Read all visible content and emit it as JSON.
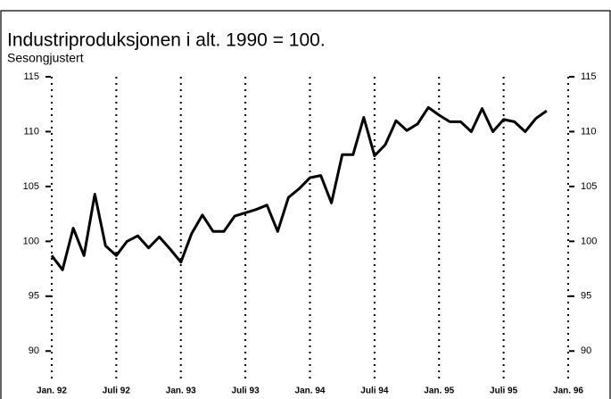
{
  "chart_data": {
    "type": "line",
    "title": "Industriproduksjonen i alt. 1990 = 100.",
    "subtitle": "Sesongjustert",
    "x": [
      "1992-01",
      "1992-02",
      "1992-03",
      "1992-04",
      "1992-05",
      "1992-06",
      "1992-07",
      "1992-08",
      "1992-09",
      "1992-10",
      "1992-11",
      "1992-12",
      "1993-01",
      "1993-02",
      "1993-03",
      "1993-04",
      "1993-05",
      "1993-06",
      "1993-07",
      "1993-08",
      "1993-09",
      "1993-10",
      "1993-11",
      "1993-12",
      "1994-01",
      "1994-02",
      "1994-03",
      "1994-04",
      "1994-05",
      "1994-06",
      "1994-07",
      "1994-08",
      "1994-09",
      "1994-10",
      "1994-11",
      "1994-12",
      "1995-01",
      "1995-02",
      "1995-03",
      "1995-04",
      "1995-05",
      "1995-06",
      "1995-07",
      "1995-08",
      "1995-09",
      "1995-10",
      "1995-11"
    ],
    "series": [
      {
        "name": "Industriproduksjonen i alt",
        "color": "#000000",
        "values": [
          98.7,
          97.4,
          101.2,
          98.7,
          104.3,
          99.6,
          98.7,
          100.0,
          100.5,
          99.4,
          100.4,
          99.3,
          98.1,
          100.7,
          102.4,
          100.9,
          100.9,
          102.3,
          102.6,
          102.9,
          103.3,
          100.9,
          104.0,
          104.8,
          105.8,
          106.0,
          103.5,
          107.9,
          107.9,
          111.3,
          107.8,
          108.8,
          111.0,
          110.1,
          110.7,
          112.2,
          111.5,
          110.9,
          110.9,
          110.0,
          112.1,
          110.0,
          111.1,
          110.9,
          110.0,
          111.2,
          111.9
        ]
      }
    ],
    "xlim": [
      "1992-01",
      "1996-01"
    ],
    "xticks": [
      {
        "value": "1992-01",
        "label": "Jan. 92"
      },
      {
        "value": "1992-07",
        "label": "Juli 92"
      },
      {
        "value": "1993-01",
        "label": "Jan. 93"
      },
      {
        "value": "1993-07",
        "label": "Juli 93"
      },
      {
        "value": "1994-01",
        "label": "Jan. 94"
      },
      {
        "value": "1994-07",
        "label": "Juli 94"
      },
      {
        "value": "1995-01",
        "label": "Jan. 95"
      },
      {
        "value": "1995-07",
        "label": "Juli 95"
      },
      {
        "value": "1996-01",
        "label": "Jan. 96"
      }
    ],
    "ylim": [
      87.5,
      115
    ],
    "yticks": [
      90,
      95,
      100,
      105,
      110,
      115
    ],
    "y2lim": [
      87.5,
      115
    ],
    "y2ticks": [
      90,
      95,
      100,
      105,
      110,
      115
    ],
    "grid": true
  }
}
